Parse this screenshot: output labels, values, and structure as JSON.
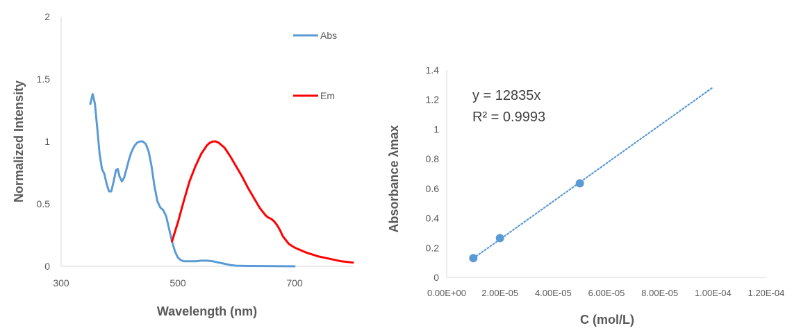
{
  "chart_data": [
    {
      "type": "line",
      "title": "",
      "xlabel": "Wavelength (nm)",
      "ylabel": "Normalized Intensity",
      "xlim": [
        300,
        800
      ],
      "ylim": [
        0,
        2
      ],
      "x_ticks": [
        "300",
        "500",
        "700"
      ],
      "y_ticks": [
        "0",
        "0.5",
        "1",
        "1.5",
        "2"
      ],
      "grid": false,
      "legend_position": "right",
      "series": [
        {
          "name": "Abs",
          "color": "#5B9BD5",
          "x": [
            350,
            354,
            358,
            362,
            366,
            370,
            374,
            378,
            382,
            386,
            390,
            394,
            397,
            400,
            404,
            408,
            412,
            416,
            420,
            425,
            430,
            435,
            440,
            445,
            450,
            455,
            460,
            465,
            470,
            475,
            480,
            485,
            490,
            495,
            500,
            505,
            510,
            520,
            530,
            540,
            550,
            560,
            570,
            580,
            590,
            600,
            620,
            650,
            700
          ],
          "y": [
            1.3,
            1.38,
            1.3,
            1.1,
            0.9,
            0.78,
            0.74,
            0.66,
            0.6,
            0.6,
            0.68,
            0.77,
            0.78,
            0.72,
            0.68,
            0.71,
            0.78,
            0.85,
            0.91,
            0.96,
            0.99,
            1.0,
            1.0,
            0.98,
            0.92,
            0.8,
            0.64,
            0.52,
            0.47,
            0.45,
            0.4,
            0.3,
            0.2,
            0.12,
            0.07,
            0.05,
            0.04,
            0.04,
            0.04,
            0.045,
            0.045,
            0.04,
            0.03,
            0.02,
            0.01,
            0.005,
            0.003,
            0.002,
            0.0
          ]
        },
        {
          "name": "Em",
          "color": "#FF0000",
          "x": [
            490,
            500,
            510,
            520,
            530,
            540,
            550,
            555,
            560,
            565,
            570,
            575,
            580,
            590,
            600,
            610,
            620,
            630,
            640,
            650,
            655,
            660,
            665,
            670,
            675,
            680,
            690,
            700,
            720,
            740,
            760,
            780,
            800
          ],
          "y": [
            0.2,
            0.35,
            0.52,
            0.68,
            0.8,
            0.9,
            0.97,
            0.99,
            1.0,
            1.0,
            0.99,
            0.97,
            0.95,
            0.88,
            0.8,
            0.72,
            0.63,
            0.55,
            0.47,
            0.41,
            0.39,
            0.38,
            0.36,
            0.33,
            0.29,
            0.24,
            0.18,
            0.15,
            0.11,
            0.08,
            0.06,
            0.04,
            0.03
          ]
        }
      ]
    },
    {
      "type": "scatter",
      "title": "",
      "xlabel": "C (mol/L)",
      "ylabel": "Absorbance λmax",
      "xlim": [
        0,
        0.00012
      ],
      "ylim": [
        0,
        1.4
      ],
      "x_ticks": [
        "0.00E+00",
        "2.00E-05",
        "4.00E-05",
        "6.00E-05",
        "8.00E-05",
        "1.00E-04",
        "1.20E-04"
      ],
      "y_ticks": [
        "0",
        "0.2",
        "0.4",
        "0.6",
        "0.8",
        "1",
        "1.2",
        "1.4"
      ],
      "grid": false,
      "points": [
        {
          "x": 1e-05,
          "y": 0.13
        },
        {
          "x": 2e-05,
          "y": 0.265
        },
        {
          "x": 5e-05,
          "y": 0.635
        }
      ],
      "point_color": "#5B9BD5",
      "trendline": {
        "slope": 12835,
        "x_range": [
          1e-05,
          0.0001
        ],
        "color": "#5B9BD5",
        "equation": "y = 12835x",
        "r2": "R² = 0.9993"
      }
    }
  ]
}
